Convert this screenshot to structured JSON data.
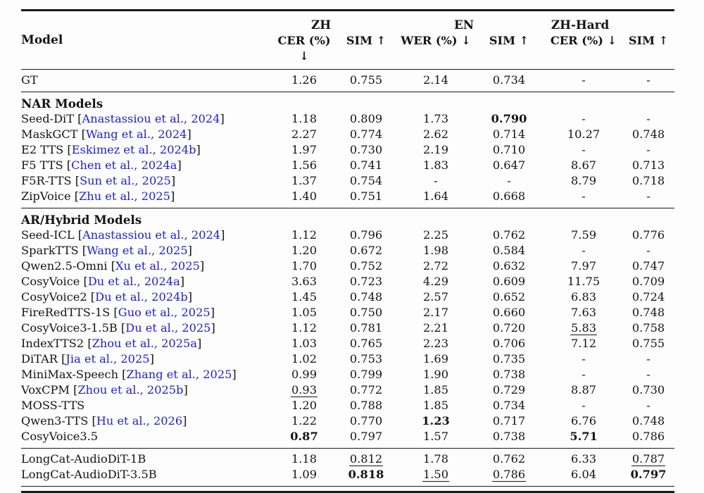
{
  "colors": {
    "text": "#141414",
    "link": "#2020d0",
    "rule": "#1a1a1a"
  },
  "table": {
    "model_header": "Model",
    "groups": [
      {
        "label": "ZH"
      },
      {
        "label": "EN"
      },
      {
        "label": "ZH-Hard"
      }
    ],
    "subheaders": [
      "CER (%) ↓",
      "SIM ↑",
      "WER (%) ↓",
      "SIM ↑",
      "CER (%) ↓",
      "SIM ↑"
    ],
    "sections": [
      {
        "header": null,
        "rows": [
          {
            "model": "GT",
            "citation": null,
            "values": [
              {
                "t": "1.26"
              },
              {
                "t": "0.755"
              },
              {
                "t": "2.14"
              },
              {
                "t": "0.734"
              },
              {
                "t": "-"
              },
              {
                "t": "-"
              }
            ]
          }
        ]
      },
      {
        "header": "NAR Models",
        "rows": [
          {
            "model": "Seed-DiT",
            "citation": "Anastassiou et al., 2024",
            "values": [
              {
                "t": "1.18"
              },
              {
                "t": "0.809"
              },
              {
                "t": "1.73"
              },
              {
                "t": "0.790",
                "b": true
              },
              {
                "t": "-"
              },
              {
                "t": "-"
              }
            ]
          },
          {
            "model": "MaskGCT",
            "citation": "Wang et al., 2024",
            "values": [
              {
                "t": "2.27"
              },
              {
                "t": "0.774"
              },
              {
                "t": "2.62"
              },
              {
                "t": "0.714"
              },
              {
                "t": "10.27"
              },
              {
                "t": "0.748"
              }
            ]
          },
          {
            "model": "E2 TTS",
            "citation": "Eskimez et al., 2024b",
            "values": [
              {
                "t": "1.97"
              },
              {
                "t": "0.730"
              },
              {
                "t": "2.19"
              },
              {
                "t": "0.710"
              },
              {
                "t": "-"
              },
              {
                "t": "-"
              }
            ]
          },
          {
            "model": "F5 TTS",
            "citation": "Chen et al., 2024a",
            "values": [
              {
                "t": "1.56"
              },
              {
                "t": "0.741"
              },
              {
                "t": "1.83"
              },
              {
                "t": "0.647"
              },
              {
                "t": "8.67"
              },
              {
                "t": "0.713"
              }
            ]
          },
          {
            "model": "F5R-TTS",
            "citation": "Sun et al., 2025",
            "values": [
              {
                "t": "1.37"
              },
              {
                "t": "0.754"
              },
              {
                "t": "-"
              },
              {
                "t": "-"
              },
              {
                "t": "8.79"
              },
              {
                "t": "0.718"
              }
            ]
          },
          {
            "model": "ZipVoice",
            "citation": "Zhu et al., 2025",
            "values": [
              {
                "t": "1.40"
              },
              {
                "t": "0.751"
              },
              {
                "t": "1.64"
              },
              {
                "t": "0.668"
              },
              {
                "t": "-"
              },
              {
                "t": "-"
              }
            ]
          }
        ]
      },
      {
        "header": "AR/Hybrid Models",
        "rows": [
          {
            "model": "Seed-ICL",
            "citation": "Anastassiou et al., 2024",
            "values": [
              {
                "t": "1.12"
              },
              {
                "t": "0.796"
              },
              {
                "t": "2.25"
              },
              {
                "t": "0.762"
              },
              {
                "t": "7.59"
              },
              {
                "t": "0.776"
              }
            ]
          },
          {
            "model": "SparkTTS",
            "citation": "Wang et al., 2025",
            "values": [
              {
                "t": "1.20"
              },
              {
                "t": "0.672"
              },
              {
                "t": "1.98"
              },
              {
                "t": "0.584"
              },
              {
                "t": "-"
              },
              {
                "t": "-"
              }
            ]
          },
          {
            "model": "Qwen2.5-Omni",
            "citation": "Xu et al., 2025",
            "values": [
              {
                "t": "1.70"
              },
              {
                "t": "0.752"
              },
              {
                "t": "2.72"
              },
              {
                "t": "0.632"
              },
              {
                "t": "7.97"
              },
              {
                "t": "0.747"
              }
            ]
          },
          {
            "model": "CosyVoice",
            "citation": "Du et al., 2024a",
            "values": [
              {
                "t": "3.63"
              },
              {
                "t": "0.723"
              },
              {
                "t": "4.29"
              },
              {
                "t": "0.609"
              },
              {
                "t": "11.75"
              },
              {
                "t": "0.709"
              }
            ]
          },
          {
            "model": "CosyVoice2",
            "citation": "Du et al., 2024b",
            "values": [
              {
                "t": "1.45"
              },
              {
                "t": "0.748"
              },
              {
                "t": "2.57"
              },
              {
                "t": "0.652"
              },
              {
                "t": "6.83"
              },
              {
                "t": "0.724"
              }
            ]
          },
          {
            "model": "FireRedTTS-1S",
            "citation": "Guo et al., 2025",
            "values": [
              {
                "t": "1.05"
              },
              {
                "t": "0.750"
              },
              {
                "t": "2.17"
              },
              {
                "t": "0.660"
              },
              {
                "t": "7.63"
              },
              {
                "t": "0.748"
              }
            ]
          },
          {
            "model": "CosyVoice3-1.5B",
            "citation": "Du et al., 2025",
            "values": [
              {
                "t": "1.12"
              },
              {
                "t": "0.781"
              },
              {
                "t": "2.21"
              },
              {
                "t": "0.720"
              },
              {
                "t": "5.83",
                "u": true
              },
              {
                "t": "0.758"
              }
            ]
          },
          {
            "model": "IndexTTS2",
            "citation": "Zhou et al., 2025a",
            "values": [
              {
                "t": "1.03"
              },
              {
                "t": "0.765"
              },
              {
                "t": "2.23"
              },
              {
                "t": "0.706"
              },
              {
                "t": "7.12"
              },
              {
                "t": "0.755"
              }
            ]
          },
          {
            "model": "DiTAR",
            "citation": "Jia et al., 2025",
            "values": [
              {
                "t": "1.02"
              },
              {
                "t": "0.753"
              },
              {
                "t": "1.69"
              },
              {
                "t": "0.735"
              },
              {
                "t": "-"
              },
              {
                "t": "-"
              }
            ]
          },
          {
            "model": "MiniMax-Speech",
            "citation": "Zhang et al., 2025",
            "values": [
              {
                "t": "0.99"
              },
              {
                "t": "0.799"
              },
              {
                "t": "1.90"
              },
              {
                "t": "0.738"
              },
              {
                "t": "-"
              },
              {
                "t": "-"
              }
            ]
          },
          {
            "model": "VoxCPM",
            "citation": "Zhou et al., 2025b",
            "values": [
              {
                "t": "0.93",
                "u": true
              },
              {
                "t": "0.772"
              },
              {
                "t": "1.85"
              },
              {
                "t": "0.729"
              },
              {
                "t": "8.87"
              },
              {
                "t": "0.730"
              }
            ]
          },
          {
            "model": "MOSS-TTS",
            "citation": null,
            "values": [
              {
                "t": "1.20"
              },
              {
                "t": "0.788"
              },
              {
                "t": "1.85"
              },
              {
                "t": "0.734"
              },
              {
                "t": "-"
              },
              {
                "t": "-"
              }
            ]
          },
          {
            "model": "Qwen3-TTS",
            "citation": "Hu et al., 2026",
            "values": [
              {
                "t": "1.22"
              },
              {
                "t": "0.770"
              },
              {
                "t": "1.23",
                "b": true
              },
              {
                "t": "0.717"
              },
              {
                "t": "6.76"
              },
              {
                "t": "0.748"
              }
            ]
          },
          {
            "model": "CosyVoice3.5",
            "citation": null,
            "values": [
              {
                "t": "0.87",
                "b": true
              },
              {
                "t": "0.797"
              },
              {
                "t": "1.57"
              },
              {
                "t": "0.738"
              },
              {
                "t": "5.71",
                "b": true
              },
              {
                "t": "0.786"
              }
            ]
          }
        ]
      },
      {
        "header": null,
        "rows": [
          {
            "model": "LongCat-AudioDiT-1B",
            "citation": null,
            "values": [
              {
                "t": "1.18"
              },
              {
                "t": "0.812",
                "u": true
              },
              {
                "t": "1.78"
              },
              {
                "t": "0.762"
              },
              {
                "t": "6.33"
              },
              {
                "t": "0.787",
                "u": true
              }
            ]
          },
          {
            "model": "LongCat-AudioDiT-3.5B",
            "citation": null,
            "values": [
              {
                "t": "1.09"
              },
              {
                "t": "0.818",
                "b": true
              },
              {
                "t": "1.50",
                "u": true
              },
              {
                "t": "0.786",
                "u": true
              },
              {
                "t": "6.04"
              },
              {
                "t": "0.797",
                "b": true
              }
            ]
          }
        ]
      }
    ]
  }
}
